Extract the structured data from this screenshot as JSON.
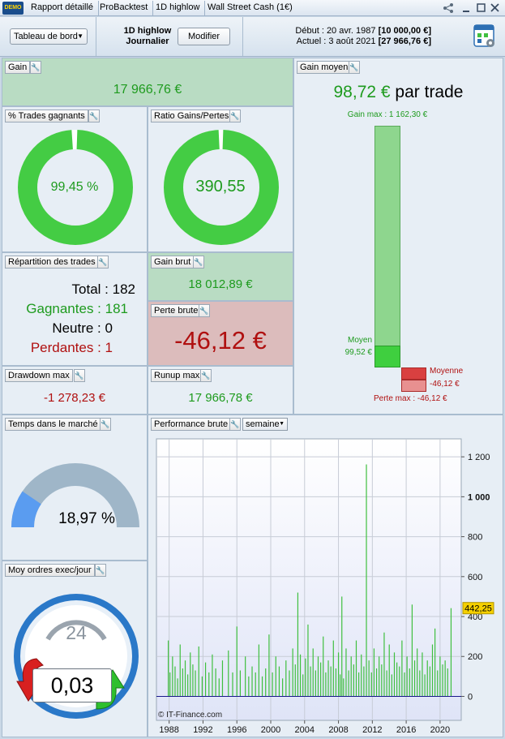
{
  "tabs": [
    "Rapport détaillé",
    "ProBacktest",
    "1D highlow",
    "Wall Street Cash (1€)"
  ],
  "demo_label": "DEMO",
  "header": {
    "dropdown": "Tableau de bord",
    "strategy_line1": "1D highlow",
    "strategy_line2": "Journalier",
    "modify_button": "Modifier",
    "start_label": "Début :",
    "start_date": "20 avr. 1987",
    "start_capital": "[10 000,00 €]",
    "current_label": "Actuel :",
    "current_date": "3 août 2021",
    "current_capital": "[27 966,76 €]"
  },
  "gain": {
    "title": "Gain",
    "value": "17 966,76 €"
  },
  "win_rate": {
    "title": "% Trades gagnants",
    "value": "99,45 %",
    "fraction": 0.9945
  },
  "ratio": {
    "title": "Ratio Gains/Pertes",
    "value": "390,55",
    "fraction": 0.9974
  },
  "average_gain": {
    "title": "Gain moyen",
    "value": "98,72 €",
    "suffix": "par trade",
    "max_gain_label": "Gain max : 1 162,30 €",
    "avg_label": "Moyen",
    "avg_value": "99,52 €",
    "avg_loss_label": "Moyenne",
    "avg_loss_value": "-46,12 €",
    "max_loss_label": "Perte max : -46,12 €"
  },
  "distribution": {
    "title": "Répartition des trades",
    "total_label": "Total :",
    "total": "182",
    "winners_label": "Gagnantes :",
    "winners": "181",
    "neutral_label": "Neutre :",
    "neutral": "0",
    "losers_label": "Perdantes :",
    "losers": "1"
  },
  "gross_gain": {
    "title": "Gain brut",
    "value": "18 012,89 €"
  },
  "gross_loss": {
    "title": "Perte brute",
    "value": "-46,12 €"
  },
  "drawdown": {
    "title": "Drawdown max",
    "value": "-1 278,23 €"
  },
  "runup": {
    "title": "Runup max",
    "value": "17 966,78 €"
  },
  "time_in_market": {
    "title": "Temps dans le marché",
    "value": "18,97 %",
    "fraction": 0.1897
  },
  "orders_per_day": {
    "title": "Moy ordres exec/jour",
    "value": "0,03",
    "clock_number": "24"
  },
  "performance": {
    "title": "Performance brute",
    "period": "semaine",
    "copyright": "© IT-Finance.com",
    "last_value_label": "442,25",
    "colors": {
      "bar": "#3fbf3f",
      "zero_line": "#1a1a8c",
      "accent": "#1e9b1e",
      "loss": "#b01010"
    }
  },
  "chart_data": {
    "type": "bar",
    "title": "Performance brute",
    "xlabel": "",
    "ylabel": "",
    "xlim": [
      1986.5,
      2022.5
    ],
    "ylim": [
      -120,
      1290
    ],
    "x_ticks": [
      "1988",
      "1992",
      "1996",
      "2000",
      "2004",
      "2008",
      "2012",
      "2016",
      "2020"
    ],
    "y_ticks": [
      "0",
      "200",
      "400",
      "600",
      "800",
      "1 000",
      "1 200"
    ],
    "x": [
      1987.9,
      1988.1,
      1988.4,
      1988.7,
      1989.0,
      1989.3,
      1989.6,
      1989.9,
      1990.2,
      1990.5,
      1990.8,
      1991.1,
      1991.5,
      1991.9,
      1992.3,
      1992.7,
      1993.1,
      1993.5,
      1993.9,
      1994.3,
      1995.0,
      1995.5,
      1996.0,
      1996.4,
      1997.0,
      1997.4,
      1997.8,
      1998.2,
      1998.6,
      1999.0,
      1999.4,
      1999.8,
      2000.2,
      2000.6,
      2001.0,
      2001.4,
      2001.8,
      2002.2,
      2002.6,
      2002.9,
      2003.2,
      2003.5,
      2003.8,
      2004.1,
      2004.4,
      2004.7,
      2005.0,
      2005.3,
      2005.6,
      2005.9,
      2006.2,
      2006.5,
      2006.8,
      2007.1,
      2007.4,
      2007.7,
      2008.0,
      2008.2,
      2008.4,
      2008.6,
      2008.9,
      2009.2,
      2009.5,
      2009.8,
      2010.1,
      2010.4,
      2010.7,
      2011.0,
      2011.3,
      2011.6,
      2011.9,
      2012.2,
      2012.5,
      2012.8,
      2013.1,
      2013.4,
      2013.7,
      2014.0,
      2014.3,
      2014.6,
      2014.9,
      2015.2,
      2015.5,
      2015.8,
      2016.1,
      2016.4,
      2016.7,
      2017.0,
      2017.3,
      2017.6,
      2017.9,
      2018.2,
      2018.5,
      2018.8,
      2019.1,
      2019.4,
      2019.7,
      2020.0,
      2020.3,
      2020.6,
      2020.9,
      2021.3
    ],
    "values": [
      280,
      120,
      200,
      150,
      90,
      260,
      140,
      180,
      110,
      220,
      160,
      130,
      250,
      100,
      170,
      120,
      210,
      140,
      90,
      180,
      230,
      120,
      350,
      130,
      200,
      100,
      150,
      120,
      260,
      100,
      140,
      310,
      120,
      200,
      150,
      90,
      180,
      130,
      240,
      160,
      520,
      210,
      110,
      190,
      360,
      150,
      240,
      130,
      200,
      170,
      300,
      120,
      180,
      150,
      280,
      140,
      220,
      110,
      500,
      90,
      240,
      130,
      200,
      160,
      280,
      120,
      210,
      150,
      1162,
      180,
      120,
      240,
      140,
      200,
      160,
      320,
      130,
      260,
      110,
      220,
      170,
      150,
      280,
      120,
      200,
      140,
      460,
      180,
      240,
      130,
      220,
      110,
      180,
      150,
      260,
      340,
      130,
      200,
      160,
      180,
      140,
      442
    ]
  }
}
